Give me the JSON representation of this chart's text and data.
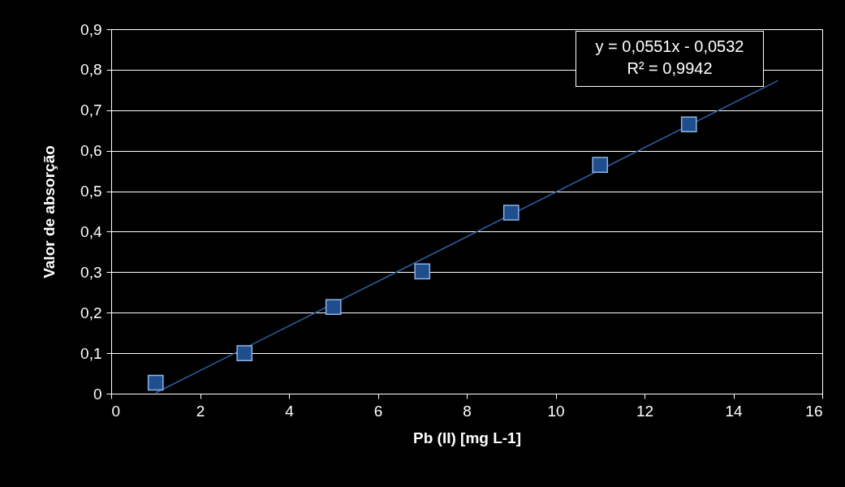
{
  "chart_data": {
    "type": "scatter",
    "xlabel": "Pb (II) [mg L-1]",
    "ylabel": "Valor de absorção",
    "xlim": [
      0,
      16
    ],
    "xticks": [
      0,
      2,
      4,
      6,
      8,
      10,
      12,
      14,
      16
    ],
    "ylim": [
      0,
      0.9
    ],
    "yticks": [
      {
        "value": 0,
        "label": "0"
      },
      {
        "value": 0.1,
        "label": "0,1"
      },
      {
        "value": 0.2,
        "label": "0,2"
      },
      {
        "value": 0.3,
        "label": "0,3"
      },
      {
        "value": 0.4,
        "label": "0,4"
      },
      {
        "value": 0.5,
        "label": "0,5"
      },
      {
        "value": 0.6,
        "label": "0,6"
      },
      {
        "value": 0.7,
        "label": "0,7"
      },
      {
        "value": 0.8,
        "label": "0,8"
      },
      {
        "value": 0.9,
        "label": "0,9"
      }
    ],
    "grid": "y",
    "series": [
      {
        "marker": "square",
        "color": "#1f4e8c",
        "x": [
          1,
          3,
          5,
          7,
          9,
          11,
          13
        ],
        "values": [
          0.027,
          0.1,
          0.214,
          0.302,
          0.447,
          0.565,
          0.665
        ]
      },
      {
        "type": "line",
        "color": "#2a64a8",
        "x": [
          1,
          15
        ],
        "values": [
          0.002,
          0.773
        ]
      }
    ],
    "annotations": [
      "y = 0,0551x - 0,0532",
      "R² = 0,9942"
    ]
  }
}
